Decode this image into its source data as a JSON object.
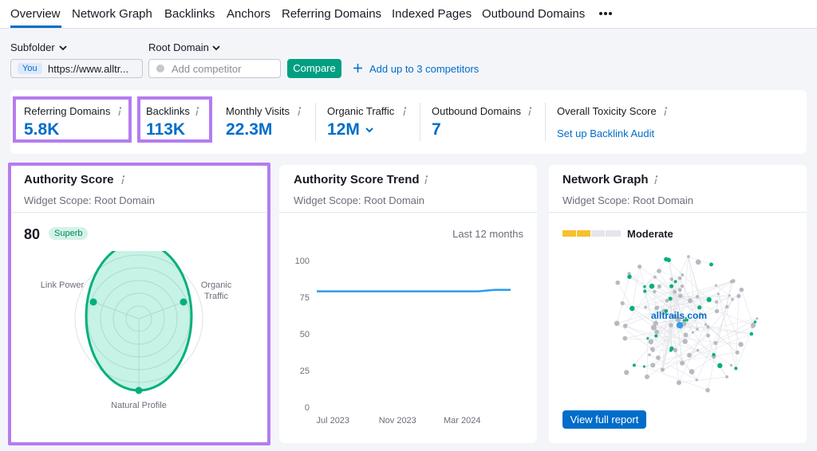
{
  "tabs": [
    "Overview",
    "Network Graph",
    "Backlinks",
    "Anchors",
    "Referring Domains",
    "Indexed Pages",
    "Outbound Domains"
  ],
  "filters": {
    "scope": "Subfolder",
    "domain_type": "Root Domain",
    "you_badge": "You",
    "url": "https://www.alltr...",
    "competitor_placeholder": "Add competitor",
    "compare": "Compare",
    "add_competitors": "Add up to 3 competitors"
  },
  "metrics": [
    {
      "label": "Referring Domains",
      "value": "5.8K"
    },
    {
      "label": "Backlinks",
      "value": "113K"
    },
    {
      "label": "Monthly Visits",
      "value": "22.3M"
    },
    {
      "label": "Organic Traffic",
      "value": "12M"
    },
    {
      "label": "Outbound Domains",
      "value": "7"
    },
    {
      "label": "Overall Toxicity Score",
      "link": "Set up Backlink Audit"
    }
  ],
  "authority": {
    "title": "Authority Score",
    "scope": "Widget Scope: Root Domain",
    "score": "80",
    "badge": "Superb",
    "axes": [
      "Link Power",
      "Organic Traffic",
      "Natural Profile"
    ]
  },
  "trend": {
    "title": "Authority Score Trend",
    "scope": "Widget Scope: Root Domain",
    "period": "Last 12 months",
    "chart_data": {
      "type": "line",
      "categories": [
        null,
        "Jul 2023",
        null,
        null,
        null,
        "Nov 2023",
        null,
        null,
        null,
        "Mar 2024",
        null,
        null,
        null
      ],
      "values": [
        79,
        79,
        79,
        79,
        79,
        79,
        79,
        79,
        79,
        79,
        79,
        80,
        80
      ],
      "color": "#2e9bf0",
      "ylim": [
        0,
        100
      ],
      "yticks": [
        0,
        25,
        50,
        75,
        100
      ],
      "grid": false
    }
  },
  "network": {
    "title": "Network Graph",
    "scope": "Widget Scope: Root Domain",
    "toxicity": "Moderate",
    "domain": "alltrails.com",
    "button": "View full report"
  }
}
